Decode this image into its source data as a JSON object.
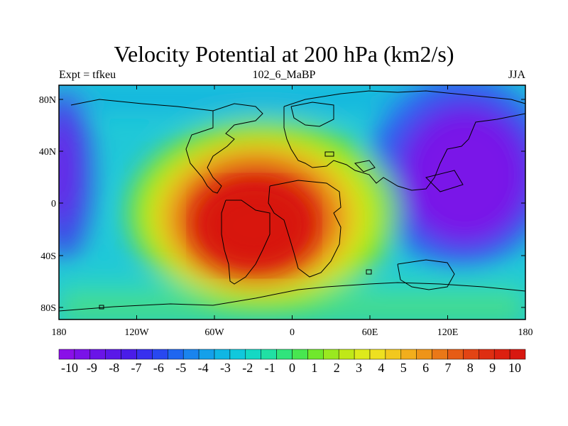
{
  "title": "Velocity Potential at 200 hPa (km2/s)",
  "subtitle_left": "Expt = tfkeu",
  "subtitle_center": "102_6_MaBP",
  "subtitle_right": "JJA",
  "x_ticks": [
    "180",
    "120W",
    "60W",
    "0",
    "60E",
    "120E",
    "180"
  ],
  "y_ticks": [
    "80N",
    "40N",
    "0",
    "40S",
    "80S"
  ],
  "colorbar": {
    "labels": [
      "-10",
      "-9",
      "-8",
      "-7",
      "-6",
      "-5",
      "-4",
      "-3",
      "-2",
      "-1",
      "0",
      "1",
      "2",
      "3",
      "4",
      "5",
      "6",
      "7",
      "8",
      "9",
      "10"
    ],
    "colors": [
      "#8a10e8",
      "#7a12e8",
      "#6a14e8",
      "#5a18e8",
      "#4a1ce8",
      "#3830ee",
      "#2848f0",
      "#1e66f0",
      "#1a84ee",
      "#14a0ea",
      "#10b6e4",
      "#10c8dc",
      "#14d8c4",
      "#20e0a4",
      "#30e47c",
      "#48e650",
      "#70e82c",
      "#9ae820",
      "#c0e818",
      "#ddea1c",
      "#eee020",
      "#f2c81e",
      "#f2ae1c",
      "#ee9418",
      "#ea7818",
      "#e65c16",
      "#e24414",
      "#de2e12",
      "#dc2010",
      "#d81810"
    ]
  },
  "chart_data": {
    "type": "contour-map",
    "field": "Velocity Potential at 200 hPa",
    "units": "km2/s",
    "season": "JJA",
    "experiment": "tfkeu",
    "x_range": [
      -180,
      180
    ],
    "y_range": [
      -90,
      90
    ],
    "levels": [
      -10,
      -9,
      -8,
      -7,
      -6,
      -5,
      -4,
      -3,
      -2,
      -1,
      0,
      1,
      2,
      3,
      4,
      5,
      6,
      7,
      8,
      9,
      10
    ],
    "features": [
      {
        "type": "maximum",
        "lon": -30,
        "lat": -20,
        "value": 10
      },
      {
        "type": "minimum",
        "lon": 135,
        "lat": 15,
        "value": -10
      },
      {
        "type": "minimum",
        "lon": -178,
        "lat": 20,
        "value": -9
      }
    ]
  }
}
